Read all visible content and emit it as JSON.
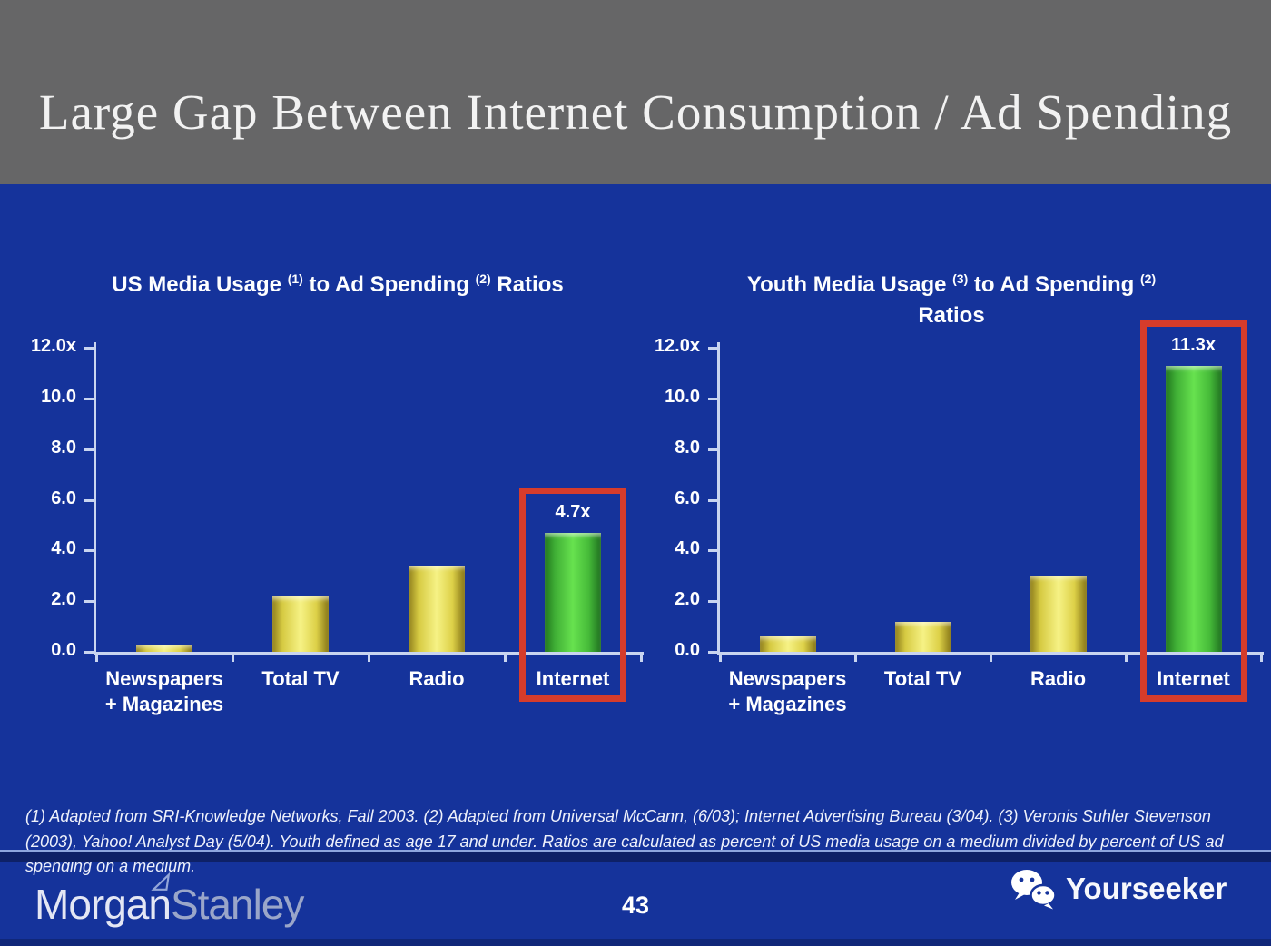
{
  "header": {
    "title": "Large Gap Between Internet Consumption / Ad Spending"
  },
  "chart_data": [
    {
      "type": "bar",
      "title": "US Media Usage (1) to Ad Spending (2) Ratios",
      "title_segments": [
        {
          "t": "US Media Usage "
        },
        {
          "s": "(1)"
        },
        {
          "t": " to Ad Spending "
        },
        {
          "s": "(2)"
        },
        {
          "t": " Ratios"
        }
      ],
      "categories": [
        "Newspapers\n+ Magazines",
        "Total TV",
        "Radio",
        "Internet"
      ],
      "values": [
        0.3,
        2.2,
        3.4,
        4.7
      ],
      "bar_colors": [
        "yellow",
        "yellow",
        "yellow",
        "green"
      ],
      "highlight": {
        "index": 3,
        "label": "4.7x"
      },
      "xlabel": "",
      "ylabel": "",
      "ylim": [
        0,
        12
      ],
      "ytick_values": [
        12,
        10,
        8,
        6,
        4,
        2,
        0
      ],
      "ytick_labels": [
        "12.0x",
        "10.0",
        "8.0",
        "6.0",
        "4.0",
        "2.0",
        "0.0"
      ],
      "grid": false,
      "legend": null
    },
    {
      "type": "bar",
      "title": "Youth Media Usage (3) to Ad Spending (2) Ratios",
      "title_segments": [
        {
          "t": "Youth Media Usage "
        },
        {
          "s": "(3)"
        },
        {
          "t": " to Ad Spending "
        },
        {
          "s": "(2)"
        },
        {
          "br": true
        },
        {
          "t": "Ratios"
        }
      ],
      "categories": [
        "Newspapers\n+ Magazines",
        "Total TV",
        "Radio",
        "Internet"
      ],
      "values": [
        0.6,
        1.2,
        3.0,
        11.3
      ],
      "bar_colors": [
        "yellow",
        "yellow",
        "yellow",
        "green"
      ],
      "highlight": {
        "index": 3,
        "label": "11.3x"
      },
      "xlabel": "",
      "ylabel": "",
      "ylim": [
        0,
        12
      ],
      "ytick_values": [
        12,
        10,
        8,
        6,
        4,
        2,
        0
      ],
      "ytick_labels": [
        "12.0x",
        "10.0",
        "8.0",
        "6.0",
        "4.0",
        "2.0",
        "0.0"
      ],
      "grid": false,
      "legend": null
    }
  ],
  "footnote": {
    "text": "(1) Adapted from SRI-Knowledge Networks, Fall 2003.  (2) Adapted from Universal McCann, (6/03); Internet Advertising Bureau (3/04). (3) Veronis Suhler Stevenson (2003), Yahoo! Analyst Day (5/04).  Youth defined as age 17 and under.  Ratios are calculated as percent of US media usage on a medium divided by percent of US ad spending on a medium."
  },
  "footer": {
    "page_number": "43",
    "brand_left": {
      "word1": "Morgan",
      "word2": "Stanley"
    },
    "brand_right": {
      "label": "Yourseeker"
    }
  },
  "colors": {
    "background_blue": "#15339b",
    "header_gray": "#666667",
    "bar_yellow": "#f6f285",
    "bar_green": "#67e24f",
    "highlight_red": "#d63c2b",
    "axis_light": "#c9d5f0",
    "text_white": "#ffffff"
  }
}
